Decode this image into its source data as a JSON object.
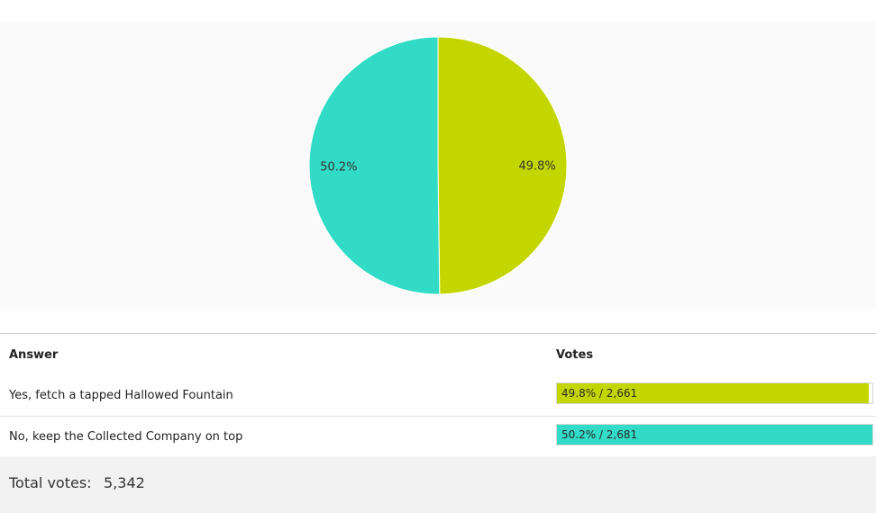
{
  "chart_data": {
    "type": "pie",
    "title": "",
    "slices": [
      {
        "label": "Yes, fetch a tapped Hallowed Fountain",
        "votes": 2661,
        "percent": 49.8,
        "percent_label": "49.8%",
        "color": "#c4d600"
      },
      {
        "label": "No, keep the Collected Company on top",
        "votes": 2681,
        "percent": 50.2,
        "percent_label": "50.2%",
        "color": "#32dbc6"
      }
    ]
  },
  "table": {
    "header_answer": "Answer",
    "header_votes": "Votes",
    "rows": [
      {
        "answer": "Yes, fetch a tapped Hallowed Fountain",
        "bar_text": "49.8% / 2,661",
        "fraction": 0.988,
        "color": "#c4d600"
      },
      {
        "answer": "No, keep the Collected Company on top",
        "bar_text": "50.2% / 2,681",
        "fraction": 1.0,
        "color": "#32dbc6"
      }
    ]
  },
  "total": {
    "label": "Total votes:",
    "value": "5,342"
  }
}
